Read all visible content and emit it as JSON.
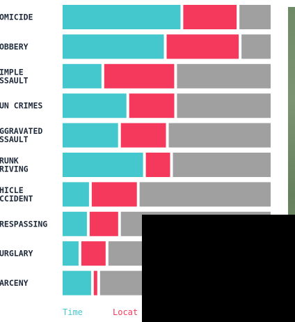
{
  "colors": {
    "time": "#45c8cd",
    "location": "#f5395d",
    "other": "#a0a0a0",
    "label": "#1f2a3a"
  },
  "chart_data": {
    "type": "bar",
    "orientation": "horizontal",
    "stacked": true,
    "normalized": true,
    "categories": [
      [
        "OMICIDE"
      ],
      [
        "OBBERY"
      ],
      [
        "IMPLE",
        "SSAULT"
      ],
      [
        "UN CRIMES"
      ],
      [
        "GGRAVATED",
        "SSAULT"
      ],
      [
        "RUNK",
        "RIVING"
      ],
      [
        "HICLE",
        "CCIDENT"
      ],
      [
        "RESPASSING"
      ],
      [
        "URGLARY"
      ],
      [
        "ARCENY"
      ]
    ],
    "series": [
      {
        "name": "Time",
        "values": [
          0.58,
          0.5,
          0.2,
          0.32,
          0.28,
          0.4,
          0.14,
          0.13,
          0.09,
          0.15
        ]
      },
      {
        "name": "Locat",
        "values": [
          0.27,
          0.36,
          0.35,
          0.23,
          0.23,
          0.13,
          0.23,
          0.15,
          0.13,
          0.03
        ]
      },
      {
        "name": "",
        "values": [
          0.15,
          0.14,
          0.45,
          0.45,
          0.49,
          0.47,
          0.63,
          0.72,
          0.78,
          0.82
        ]
      }
    ],
    "legend": "bottom-left"
  }
}
